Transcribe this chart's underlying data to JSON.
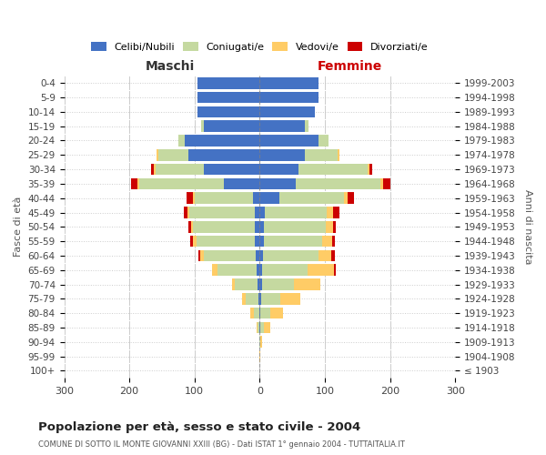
{
  "age_groups": [
    "100+",
    "95-99",
    "90-94",
    "85-89",
    "80-84",
    "75-79",
    "70-74",
    "65-69",
    "60-64",
    "55-59",
    "50-54",
    "45-49",
    "40-44",
    "35-39",
    "30-34",
    "25-29",
    "20-24",
    "15-19",
    "10-14",
    "5-9",
    "0-4"
  ],
  "birth_years": [
    "≤ 1903",
    "1904-1908",
    "1909-1913",
    "1914-1918",
    "1919-1923",
    "1924-1928",
    "1929-1933",
    "1934-1938",
    "1939-1943",
    "1944-1948",
    "1949-1953",
    "1954-1958",
    "1959-1963",
    "1964-1968",
    "1969-1973",
    "1974-1978",
    "1979-1983",
    "1984-1988",
    "1989-1993",
    "1994-1998",
    "1999-2003"
  ],
  "male": {
    "celibi": [
      0,
      0,
      0,
      0,
      1,
      2,
      3,
      5,
      6,
      7,
      7,
      8,
      10,
      55,
      85,
      110,
      115,
      85,
      95,
      95,
      95
    ],
    "coniugati": [
      0,
      0,
      1,
      3,
      8,
      20,
      35,
      60,
      80,
      90,
      95,
      100,
      90,
      130,
      75,
      45,
      10,
      5,
      0,
      0,
      0
    ],
    "vedovi": [
      0,
      0,
      0,
      1,
      5,
      5,
      5,
      8,
      5,
      5,
      3,
      3,
      2,
      3,
      2,
      3,
      0,
      0,
      0,
      0,
      0
    ],
    "divorziati": [
      0,
      0,
      0,
      0,
      0,
      0,
      0,
      0,
      3,
      5,
      5,
      5,
      10,
      10,
      5,
      0,
      0,
      0,
      0,
      0,
      0
    ]
  },
  "female": {
    "nubili": [
      0,
      0,
      0,
      1,
      1,
      2,
      3,
      4,
      5,
      6,
      7,
      8,
      30,
      55,
      60,
      70,
      90,
      70,
      85,
      90,
      90
    ],
    "coniugate": [
      0,
      0,
      1,
      5,
      15,
      30,
      50,
      70,
      85,
      90,
      95,
      95,
      100,
      130,
      105,
      50,
      15,
      5,
      0,
      0,
      0
    ],
    "vedove": [
      0,
      1,
      2,
      10,
      20,
      30,
      40,
      40,
      20,
      15,
      10,
      10,
      5,
      5,
      3,
      3,
      0,
      0,
      0,
      0,
      0
    ],
    "divorziate": [
      0,
      0,
      0,
      0,
      0,
      0,
      0,
      3,
      5,
      5,
      5,
      10,
      10,
      10,
      5,
      0,
      0,
      0,
      0,
      0,
      0
    ]
  },
  "colors": {
    "celibi": "#4472C4",
    "coniugati": "#C5D9A0",
    "vedovi": "#FFCC66",
    "divorziati": "#CC0000"
  },
  "xlim": 300,
  "title": "Popolazione per età, sesso e stato civile - 2004",
  "subtitle": "COMUNE DI SOTTO IL MONTE GIOVANNI XXIII (BG) - Dati ISTAT 1° gennaio 2004 - TUTTAITALIA.IT",
  "ylabel_left": "Fasce di età",
  "ylabel_right": "Anni di nascita",
  "xlabel_left": "Maschi",
  "xlabel_right": "Femmine",
  "background_color": "#ffffff",
  "grid_color": "#cccccc"
}
